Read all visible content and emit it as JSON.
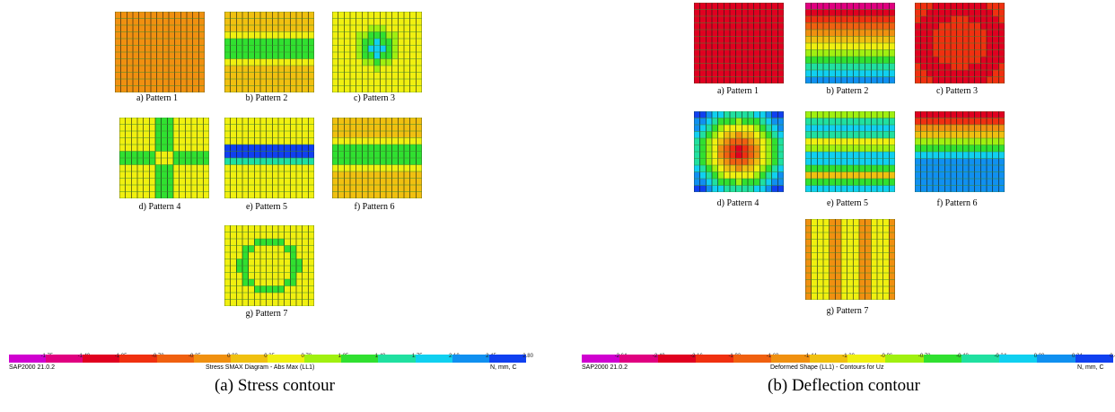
{
  "left_figure": {
    "patterns": [
      {
        "label": "a) Pattern 1",
        "field": "uniform",
        "color": "#f08c10"
      },
      {
        "label": "b) Pattern 2",
        "field": "band_stress",
        "color": "#f5c010"
      },
      {
        "label": "c) Pattern 3",
        "field": "center_spot",
        "color": "#f0d010"
      },
      {
        "label": "d) Pattern 4",
        "field": "cross",
        "color": "#f0d010"
      },
      {
        "label": "e) Pattern 5",
        "field": "band_strong",
        "color": "#f0d010"
      },
      {
        "label": "f) Pattern 6",
        "field": "band_stress",
        "color": "#f0d010"
      },
      {
        "label": "g) Pattern 7",
        "field": "ring_spots",
        "color": "#f0d010"
      }
    ],
    "legend": {
      "ticks": [
        "-1.75",
        "-1.40",
        "-1.05",
        "-0.70",
        "-0.35",
        "0.00",
        "0.35",
        "0.70",
        "1.05",
        "1.40",
        "1.75",
        "2.10",
        "2.45",
        "2.80"
      ],
      "software": "SAP2000 21.0.2",
      "title": "Stress SMAX Diagram - Abs Max  (LL1)",
      "units": "N, mm, C"
    },
    "caption": "(a)  Stress contour"
  },
  "right_figure": {
    "patterns": [
      {
        "label": "a) Pattern 1",
        "field": "uniform_red",
        "color": "#e02010"
      },
      {
        "label": "b) Pattern 2",
        "field": "gradient_v",
        "color": "#e02010"
      },
      {
        "label": "c) Pattern 3",
        "field": "bowl",
        "color": "#e02010"
      },
      {
        "label": "d) Pattern 4",
        "field": "dome",
        "color": "#e03010"
      },
      {
        "label": "e) Pattern 5",
        "field": "bands_mid",
        "color": "#f0d010"
      },
      {
        "label": "f) Pattern 6",
        "field": "gradient_v2",
        "color": "#e02010"
      },
      {
        "label": "g) Pattern 7",
        "field": "stripes_h",
        "color": "#f0a010"
      }
    ],
    "legend": {
      "ticks": [
        "-2.64",
        "-2.40",
        "-2.16",
        "-1.92",
        "-1.68",
        "-1.44",
        "-1.20",
        "-0.96",
        "-0.72",
        "-0.48",
        "-0.24",
        "0.00",
        "0.24",
        "0.48"
      ],
      "software": "SAP2000 21.0.2",
      "title": "Deformed Shape (LL1) - Contours for Uz",
      "units": "N, mm, C"
    },
    "caption": "(b)  Deflection contour"
  },
  "colors": {
    "colorbar": [
      "#d000d0",
      "#e00080",
      "#e00020",
      "#f03010",
      "#f06010",
      "#f09010",
      "#f0c010",
      "#f0f010",
      "#a0f010",
      "#30e030",
      "#20e0a0",
      "#10d0f0",
      "#1090f0",
      "#1040f0"
    ]
  }
}
